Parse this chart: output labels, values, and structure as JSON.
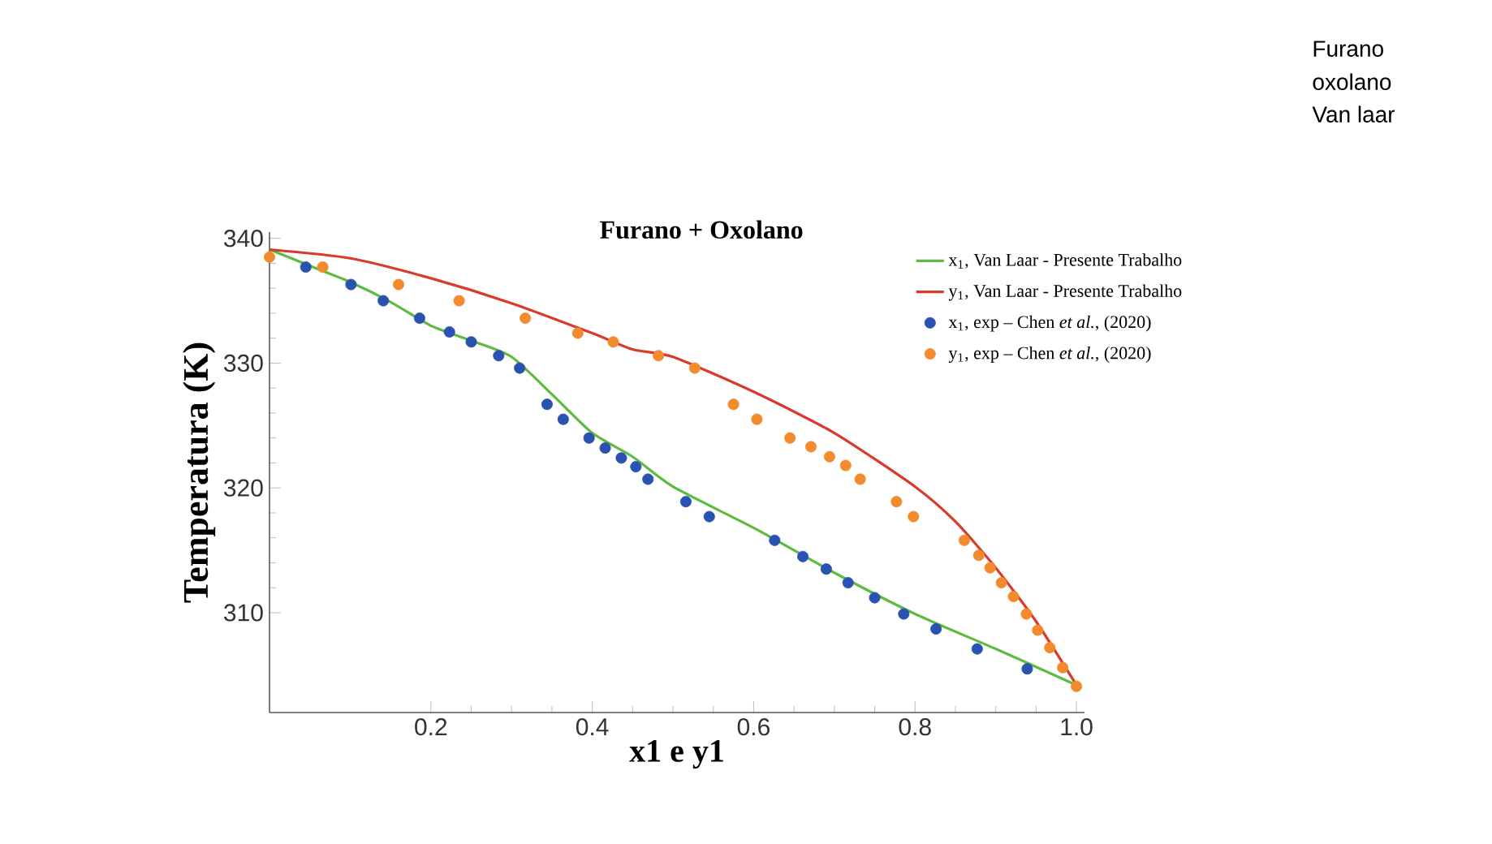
{
  "chart_data": {
    "type": "line",
    "title": "Furano + Oxolano",
    "xlabel": "x1 e y1",
    "ylabel": "Temperatura  (K)",
    "xlim": [
      0,
      1.01
    ],
    "ylim": [
      302,
      340.5
    ],
    "xticks": [
      0.2,
      0.4,
      0.6,
      0.8,
      {
        "value": 1.0,
        "label": "1.0"
      }
    ],
    "yticks": [
      310,
      320,
      330,
      340
    ],
    "legend": "top right",
    "annotations": [
      "Furano",
      "oxolano",
      "Van laar"
    ],
    "series": [
      {
        "name": "x$_{1}$, Van Laar - Presente Trabalho",
        "color": "#5dbb3f",
        "line_style": "solid",
        "x": [
          0,
          0.05,
          0.1,
          0.15,
          0.2,
          0.25,
          0.3,
          0.35,
          0.4,
          0.45,
          0.5,
          0.6,
          0.7,
          0.8,
          0.9,
          1.0
        ],
        "values": [
          339.1,
          337.8,
          336.5,
          334.9,
          333.0,
          331.8,
          330.5,
          327.5,
          324.4,
          322.5,
          320.1,
          316.8,
          313.2,
          309.9,
          307.1,
          304.2
        ]
      },
      {
        "name": "y$_{1}$, Van Laar - Presente Trabalho",
        "color": "#d93a2a",
        "line_style": "solid",
        "x": [
          0,
          0.1,
          0.2,
          0.3,
          0.4,
          0.45,
          0.5,
          0.6,
          0.7,
          0.8,
          0.85,
          0.9,
          0.95,
          1.0
        ],
        "values": [
          339.1,
          338.4,
          336.8,
          334.8,
          332.4,
          331.1,
          330.5,
          327.7,
          324.4,
          320.1,
          317.3,
          313.6,
          309.3,
          304.2
        ]
      },
      {
        "name": "x$_{1}$, exp – Chen *et al.*, (2020)",
        "type": "scatter",
        "marker": "circle",
        "color": "#2a52b0",
        "x": [
          0.045,
          0.101,
          0.141,
          0.186,
          0.223,
          0.25,
          0.284,
          0.31,
          0.344,
          0.364,
          0.396,
          0.416,
          0.436,
          0.454,
          0.469,
          0.516,
          0.545,
          0.626,
          0.661,
          0.69,
          0.717,
          0.75,
          0.786,
          0.826,
          0.877,
          0.939
        ],
        "values": [
          337.7,
          336.3,
          335.0,
          333.6,
          332.5,
          331.7,
          330.6,
          329.6,
          326.7,
          325.5,
          324.0,
          323.2,
          322.4,
          321.7,
          320.7,
          318.9,
          317.7,
          315.8,
          314.5,
          313.5,
          312.4,
          311.2,
          309.9,
          308.7,
          307.1,
          305.5
        ]
      },
      {
        "name": "y$_{1}$, exp – Chen *et al.*, (2020)",
        "type": "scatter",
        "marker": "circle",
        "color": "#f28a2e",
        "x": [
          0.0,
          0.066,
          0.16,
          0.235,
          0.317,
          0.382,
          0.426,
          0.482,
          0.527,
          0.575,
          0.604,
          0.645,
          0.671,
          0.694,
          0.714,
          0.732,
          0.777,
          0.798,
          0.861,
          0.879,
          0.893,
          0.907,
          0.922,
          0.938,
          0.952,
          0.967,
          0.983,
          1.0
        ],
        "values": [
          338.5,
          337.7,
          336.3,
          335.0,
          333.6,
          332.4,
          331.7,
          330.6,
          329.6,
          326.7,
          325.5,
          324.0,
          323.3,
          322.5,
          321.8,
          320.7,
          318.9,
          317.7,
          315.8,
          314.6,
          313.6,
          312.4,
          311.3,
          309.9,
          308.6,
          307.2,
          305.6,
          304.1
        ]
      }
    ]
  }
}
